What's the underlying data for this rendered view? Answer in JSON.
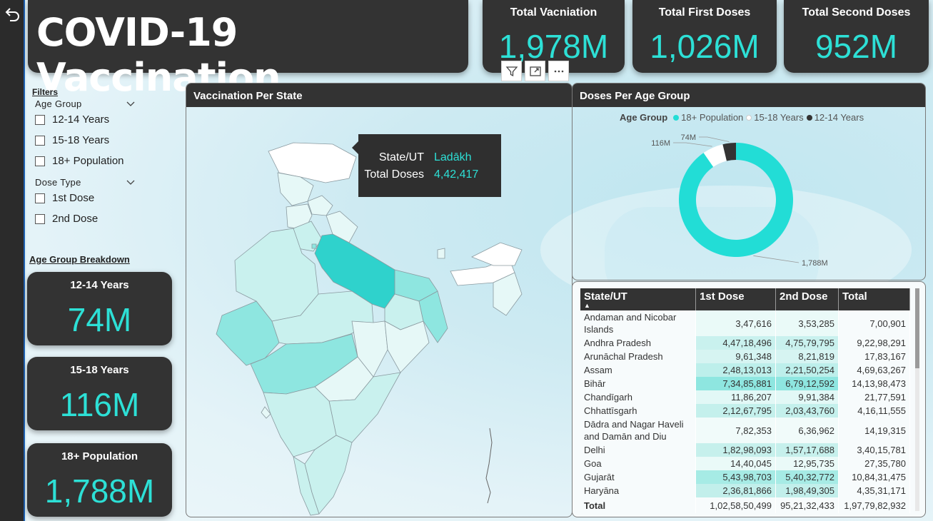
{
  "title": "COVID-19 Vaccination",
  "kpis": [
    {
      "label": "Total Vacniation",
      "value": "1,978M"
    },
    {
      "label": "Total First Doses",
      "value": "1,026M"
    },
    {
      "label": "Total Second Doses",
      "value": "952M"
    }
  ],
  "filters": {
    "title": "Filters",
    "age_group": {
      "label": "Age Group",
      "options": [
        "12-14 Years",
        "15-18 Years",
        "18+ Population"
      ]
    },
    "dose_type": {
      "label": "Dose Type",
      "options": [
        "1st Dose",
        "2nd Dose"
      ]
    }
  },
  "age_breakdown": {
    "title": "Age Group Breakdown",
    "cards": [
      {
        "label": "12-14 Years",
        "value": "74M"
      },
      {
        "label": "15-18 Years",
        "value": "116M"
      },
      {
        "label": "18+ Population",
        "value": "1,788M"
      }
    ]
  },
  "map": {
    "title": "Vaccination Per State",
    "tooltip": {
      "k1": "State/UT",
      "v1": "Ladākh",
      "k2": "Total Doses",
      "v2": "4,42,417"
    },
    "colors": {
      "highlight": "#2fd2cc",
      "mid": "#8ee6e0",
      "light": "#c9f1ee",
      "pale": "#e6f8f7",
      "white": "#ffffff"
    }
  },
  "donut": {
    "title": "Doses Per Age Group",
    "legend_title": "Age Group",
    "chart_data": {
      "type": "pie",
      "categories": [
        "18+ Population",
        "15-18 Years",
        "12-14 Years"
      ],
      "values": [
        1788,
        116,
        74
      ],
      "labels": [
        "1,788M",
        "116M",
        "74M"
      ],
      "colors": [
        "#22ddd6",
        "#ffffff",
        "#333333"
      ]
    }
  },
  "table": {
    "headers": [
      "State/UT",
      "1st Dose",
      "2nd Dose",
      "Total"
    ],
    "rows": [
      [
        "Andaman and Nicobar Islands",
        "3,47,616",
        "3,53,285",
        "7,00,901"
      ],
      [
        "Andhra Pradesh",
        "4,47,18,496",
        "4,75,79,795",
        "9,22,98,291"
      ],
      [
        "Arunāchal Pradesh",
        "9,61,348",
        "8,21,819",
        "17,83,167"
      ],
      [
        "Assam",
        "2,48,13,013",
        "2,21,50,254",
        "4,69,63,267"
      ],
      [
        "Bihār",
        "7,34,85,881",
        "6,79,12,592",
        "14,13,98,473"
      ],
      [
        "Chandīgarh",
        "11,86,207",
        "9,91,384",
        "21,77,591"
      ],
      [
        "Chhattīsgarh",
        "2,12,67,795",
        "2,03,43,760",
        "4,16,11,555"
      ],
      [
        "Dādra and Nagar Haveli and Damān and Diu",
        "7,82,353",
        "6,36,962",
        "14,19,315"
      ],
      [
        "Delhi",
        "1,82,98,093",
        "1,57,17,688",
        "3,40,15,781"
      ],
      [
        "Goa",
        "14,40,045",
        "12,95,735",
        "27,35,780"
      ],
      [
        "Gujarāt",
        "5,43,98,703",
        "5,40,32,772",
        "10,84,31,475"
      ],
      [
        "Haryāna",
        "2,36,81,866",
        "1,98,49,305",
        "4,35,31,171"
      ]
    ],
    "total": [
      "Total",
      "1,02,58,50,499",
      "95,21,32,433",
      "1,97,79,82,932"
    ]
  }
}
